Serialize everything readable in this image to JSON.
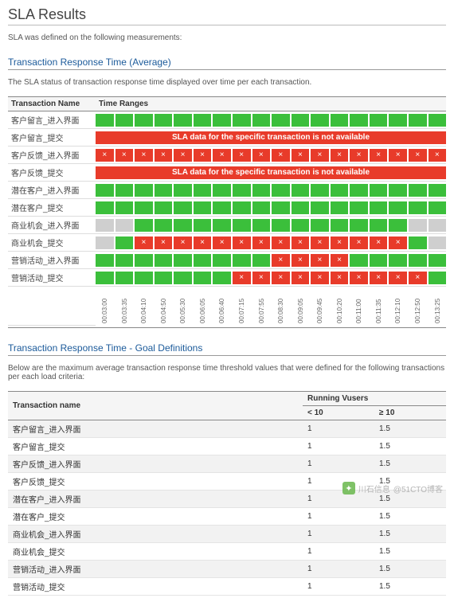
{
  "page": {
    "title": "SLA Results",
    "intro": "SLA was defined on the following measurements:"
  },
  "section_chart": {
    "title": "Transaction Response Time (Average)",
    "desc": "The SLA status of transaction response time displayed over time per each transaction.",
    "header_name": "Transaction Name",
    "header_range": "Time Ranges",
    "na_text": "SLA data for the specific transaction is not available",
    "time_ticks": [
      "00:03:00",
      "00:03:35",
      "00:04:10",
      "00:04:50",
      "00:05:30",
      "00:06:05",
      "00:06:40",
      "00:07:15",
      "00:07:55",
      "00:08:30",
      "00:09:05",
      "00:09:45",
      "00:10:20",
      "00:11:00",
      "00:11:35",
      "00:12:10",
      "00:12:50",
      "00:13:25"
    ],
    "colors": {
      "green": "#3bbf3b",
      "red": "#e83b2a",
      "grey": "#cfcfcf",
      "border": "#888888",
      "bg": "#ffffff"
    },
    "rows": [
      {
        "name": "客户留言_进入界面",
        "type": "cells",
        "cells": [
          "green",
          "green",
          "green",
          "green",
          "green",
          "green",
          "green",
          "green",
          "green",
          "green",
          "green",
          "green",
          "green",
          "green",
          "green",
          "green",
          "green",
          "green"
        ]
      },
      {
        "name": "客户留言_提交",
        "type": "na"
      },
      {
        "name": "客户反馈_进入界面",
        "type": "cells",
        "cells": [
          "red",
          "red",
          "red",
          "red",
          "red",
          "red",
          "red",
          "red",
          "red",
          "red",
          "red",
          "red",
          "red",
          "red",
          "red",
          "red",
          "red",
          "red"
        ]
      },
      {
        "name": "客户反馈_提交",
        "type": "na"
      },
      {
        "name": "潜在客户_进入界面",
        "type": "cells",
        "cells": [
          "green",
          "green",
          "green",
          "green",
          "green",
          "green",
          "green",
          "green",
          "green",
          "green",
          "green",
          "green",
          "green",
          "green",
          "green",
          "green",
          "green",
          "green"
        ]
      },
      {
        "name": "潜在客户_提交",
        "type": "cells",
        "cells": [
          "green",
          "green",
          "green",
          "green",
          "green",
          "green",
          "green",
          "green",
          "green",
          "green",
          "green",
          "green",
          "green",
          "green",
          "green",
          "green",
          "green",
          "green"
        ]
      },
      {
        "name": "商业机会_进入界面",
        "type": "cells",
        "cells": [
          "grey",
          "grey",
          "green",
          "green",
          "green",
          "green",
          "green",
          "green",
          "green",
          "green",
          "green",
          "green",
          "green",
          "green",
          "green",
          "green",
          "grey",
          "grey"
        ]
      },
      {
        "name": "商业机会_提交",
        "type": "cells",
        "cells": [
          "grey",
          "green",
          "red",
          "red",
          "red",
          "red",
          "red",
          "red",
          "red",
          "red",
          "red",
          "red",
          "red",
          "red",
          "red",
          "red",
          "green",
          "grey"
        ]
      },
      {
        "name": "营销活动_进入界面",
        "type": "cells",
        "cells": [
          "green",
          "green",
          "green",
          "green",
          "green",
          "green",
          "green",
          "green",
          "green",
          "red",
          "red",
          "red",
          "red",
          "green",
          "green",
          "green",
          "green",
          "green"
        ]
      },
      {
        "name": "营销活动_提交",
        "type": "cells",
        "cells": [
          "green",
          "green",
          "green",
          "green",
          "green",
          "green",
          "green",
          "red",
          "red",
          "red",
          "red",
          "red",
          "red",
          "red",
          "red",
          "red",
          "red",
          "green"
        ]
      }
    ]
  },
  "section_def": {
    "title": "Transaction Response Time - Goal Definitions",
    "desc": "Below are the maximum average transaction response time threshold values that were defined for the following transactions per each load criteria:",
    "headers": {
      "name": "Transaction name",
      "vusers": "Running Vusers",
      "lt": "< 10",
      "ge": "≥ 10"
    },
    "rows": [
      {
        "name": "客户留言_进入界面",
        "lt": "1",
        "ge": "1.5"
      },
      {
        "name": "客户留言_提交",
        "lt": "1",
        "ge": "1.5"
      },
      {
        "name": "客户反馈_进入界面",
        "lt": "1",
        "ge": "1.5"
      },
      {
        "name": "客户反馈_提交",
        "lt": "1",
        "ge": "1.5"
      },
      {
        "name": "潜在客户_进入界面",
        "lt": "1",
        "ge": "1.5"
      },
      {
        "name": "潜在客户_提交",
        "lt": "1",
        "ge": "1.5"
      },
      {
        "name": "商业机会_进入界面",
        "lt": "1",
        "ge": "1.5"
      },
      {
        "name": "商业机会_提交",
        "lt": "1",
        "ge": "1.5"
      },
      {
        "name": "营销活动_进入界面",
        "lt": "1",
        "ge": "1.5"
      },
      {
        "name": "营销活动_提交",
        "lt": "1",
        "ge": "1.5"
      }
    ]
  },
  "watermark": {
    "handle": "@51CTO博客",
    "brand": "川石信息"
  }
}
